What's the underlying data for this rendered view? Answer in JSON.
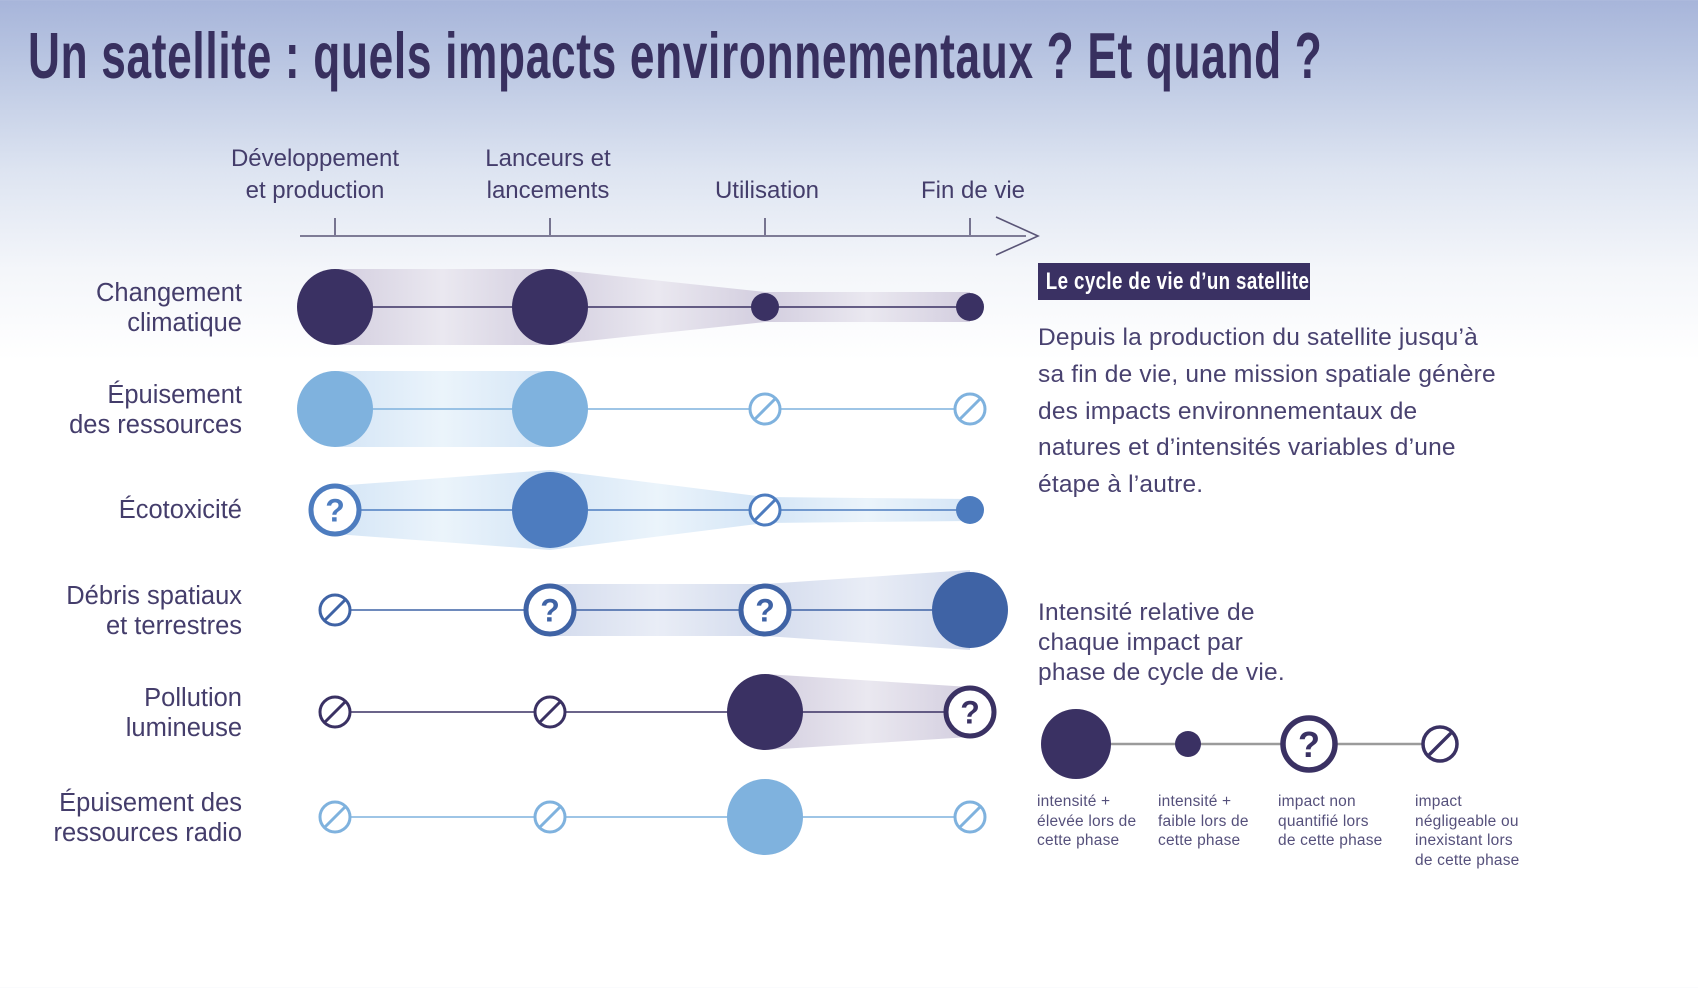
{
  "title": "Un satellite : quels impacts environnementaux ? Et quand ?",
  "colors": {
    "navy": "#3a3163",
    "lightblue": "#7fb2de",
    "blue": "#4d7cbf",
    "slate": "#3f63a5",
    "band_gray": [
      "#d3cedf",
      "#eae8f0"
    ],
    "band_lightblue": [
      "#d4e5f6",
      "#ebf4fb"
    ],
    "band_slate": [
      "#d3dbed",
      "#e9edf6"
    ],
    "axis": "#5a5577",
    "text": "#443d6b",
    "legend_line": "#9b9b9b",
    "badge_bg": "#3a3163",
    "badge_text": "#ffffff"
  },
  "chart_data": {
    "type": "lifecycle-impact-matrix",
    "phases": [
      {
        "label": "Développement et production",
        "lines": [
          "Développement",
          "et production"
        ]
      },
      {
        "label": "Lanceurs et lancements",
        "lines": [
          "Lanceurs et",
          "lancements"
        ]
      },
      {
        "label": "Utilisation",
        "lines": [
          "Utilisation"
        ]
      },
      {
        "label": "Fin de vie",
        "lines": [
          "Fin de vie"
        ]
      }
    ],
    "intensity_scale": [
      "high",
      "low",
      "unknown",
      "none"
    ],
    "rows": [
      {
        "label": "Changement climatique",
        "lines": [
          "Changement",
          "climatique"
        ],
        "color": "navy",
        "band": "gray",
        "cells": [
          "high",
          "high",
          "low",
          "low"
        ],
        "flows": [
          [
            0,
            1,
            38,
            38
          ],
          [
            1,
            2,
            38,
            15
          ],
          [
            2,
            3,
            15,
            15
          ]
        ]
      },
      {
        "label": "Épuisement des ressources",
        "lines": [
          "Épuisement",
          "des ressources"
        ],
        "color": "lightblue",
        "band": "lightblue",
        "cells": [
          "high",
          "high",
          "none",
          "none"
        ],
        "flows": [
          [
            0,
            1,
            38,
            38
          ]
        ]
      },
      {
        "label": "Écotoxicité",
        "lines": [
          "Écotoxicité"
        ],
        "color": "blue",
        "band": "lightblue",
        "cells": [
          "unknown",
          "high",
          "none",
          "low"
        ],
        "flows": [
          [
            0,
            1,
            24,
            40
          ],
          [
            1,
            2,
            40,
            13
          ],
          [
            2,
            3,
            13,
            11
          ]
        ]
      },
      {
        "label": "Débris spatiaux et terrestres",
        "lines": [
          "Débris spatiaux",
          "et terrestres"
        ],
        "color": "slate",
        "band": "slate",
        "cells": [
          "none",
          "unknown",
          "unknown",
          "high"
        ],
        "flows": [
          [
            1,
            2,
            26,
            26
          ],
          [
            2,
            3,
            26,
            40
          ]
        ]
      },
      {
        "label": "Pollution lumineuse",
        "lines": [
          "Pollution",
          "lumineuse"
        ],
        "color": "navy",
        "band": "gray",
        "cells": [
          "none",
          "none",
          "high",
          "unknown"
        ],
        "flows": [
          [
            2,
            3,
            38,
            25
          ]
        ]
      },
      {
        "label": "Épuisement des ressources radio",
        "lines": [
          "Épuisement des",
          "ressources radio"
        ],
        "color": "lightblue",
        "band": "lightblue",
        "cells": [
          "none",
          "none",
          "high",
          "none"
        ],
        "flows": []
      }
    ]
  },
  "sidebar": {
    "box_title": "Le cycle de vie d’un satellite",
    "description": "Depuis la production du satellite jusqu’à\nsa fin de vie, une mission spatiale génère\ndes impacts environnementaux de\nnatures et d’intensités variables d’une\nétape à l’autre.",
    "legend_intro": "Intensité relative de\nchaque impact par\nphase de cycle de vie.",
    "legend_items": [
      {
        "symbol": "high",
        "label": "intensité +\nélevée lors de\ncette phase"
      },
      {
        "symbol": "low",
        "label": "intensité +\nfaible lors de\ncette phase"
      },
      {
        "symbol": "unknown",
        "label": "impact non\nquantifié lors\nde cette phase"
      },
      {
        "symbol": "none",
        "label": "impact\nnégligeable ou\ninexistant lors\nde cette phase"
      }
    ]
  }
}
